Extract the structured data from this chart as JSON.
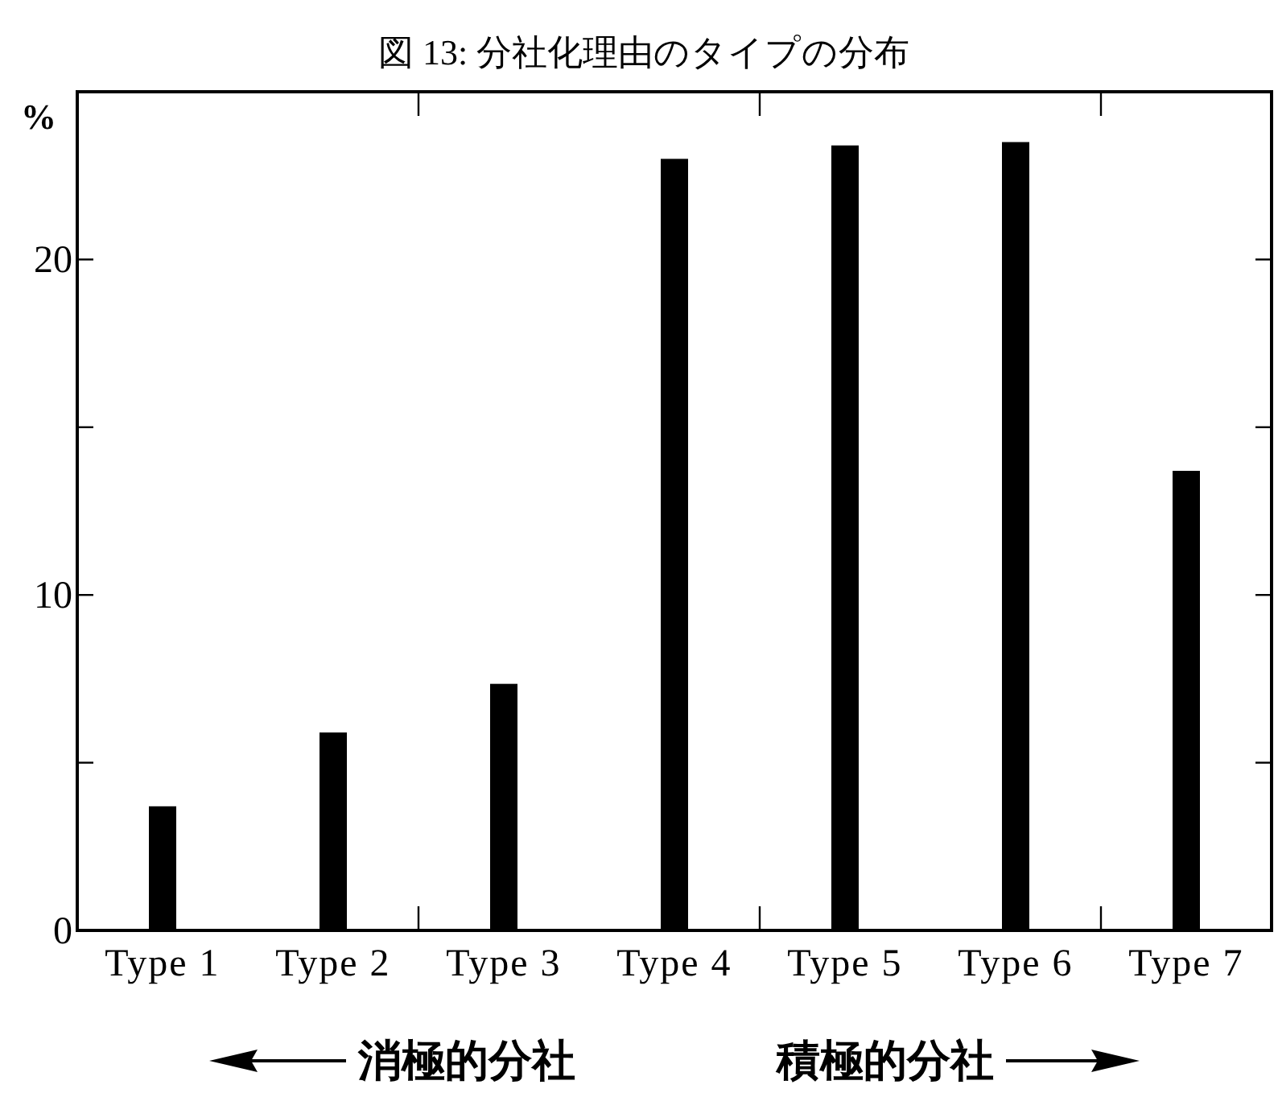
{
  "chart_data": {
    "type": "bar",
    "title": "図 13: 分社化理由のタイプの分布",
    "ylabel": "%",
    "categories": [
      "Type 1",
      "Type 2",
      "Type 3",
      "Type 4",
      "Type 5",
      "Type 6",
      "Type 7"
    ],
    "values": [
      3.7,
      5.9,
      7.35,
      23.0,
      23.4,
      23.5,
      13.7
    ],
    "color": "#000000",
    "ylim": [
      0,
      25
    ],
    "yticks": [
      0,
      {
        "value": 5,
        "label": null
      },
      10,
      {
        "value": 15,
        "label": null
      },
      20,
      {
        "value": 25,
        "label": null
      }
    ],
    "grid": false,
    "annotations": [
      "消極的分社",
      "積極的分社"
    ]
  }
}
